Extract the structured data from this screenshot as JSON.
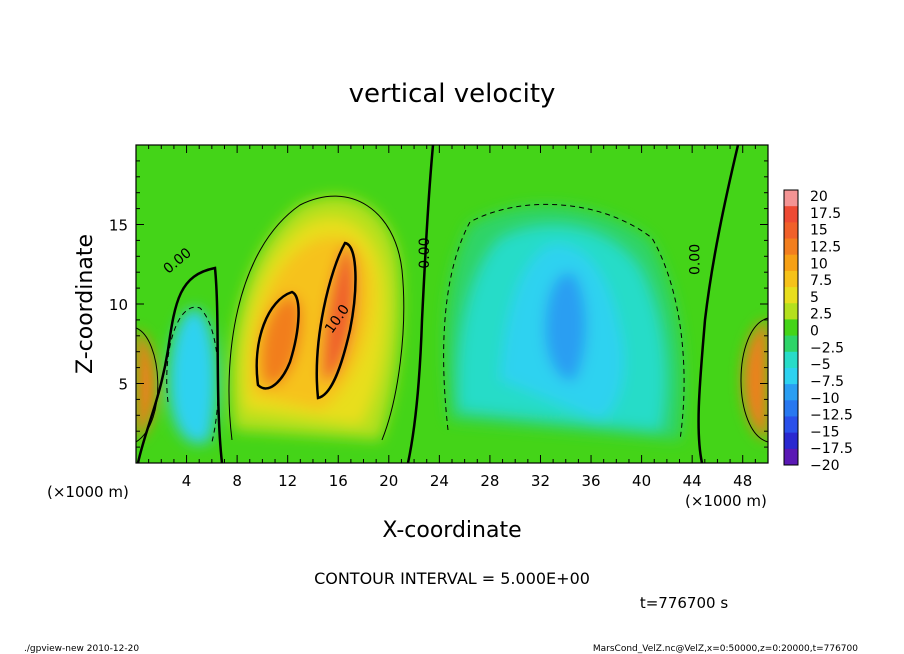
{
  "chart_data": {
    "type": "heatmap",
    "title": "vertical velocity",
    "xlabel": "X-coordinate",
    "ylabel": "Z-coordinate",
    "x_unit_left": "(×1000 m)",
    "x_unit_right": "(×1000 m)",
    "xlim": [
      0,
      50
    ],
    "ylim": [
      0,
      20
    ],
    "x_ticks": [
      4,
      8,
      12,
      16,
      20,
      24,
      28,
      32,
      36,
      40,
      44,
      48
    ],
    "y_ticks": [
      5,
      10,
      15
    ],
    "colorbar": {
      "levels": [
        20,
        17.5,
        15,
        12.5,
        10,
        7.5,
        5,
        2.5,
        0,
        -2.5,
        -5,
        -7.5,
        -10,
        -12.5,
        -15,
        -17.5,
        -20
      ],
      "labels": [
        "20",
        "17.5",
        "15",
        "12.5",
        "10",
        "7.5",
        "5",
        "2.5",
        "0",
        "−2.5",
        "−5",
        "−7.5",
        "−10",
        "−12.5",
        "−15",
        "−17.5",
        "−20"
      ],
      "colors": [
        "#f49494",
        "#ee4a34",
        "#f0602a",
        "#f27e1e",
        "#f6a015",
        "#f6c21a",
        "#e8de1e",
        "#b4e01e",
        "#44d418",
        "#2ed468",
        "#28dcc8",
        "#2ed2f0",
        "#2a9ef2",
        "#2878f0",
        "#2a50ea",
        "#2a28d0",
        "#5a18b4"
      ]
    },
    "contour_labels": [
      {
        "text": "0.00",
        "x": 3.5,
        "y": 12.5
      },
      {
        "text": "0.00",
        "x": 23.2,
        "y": 13.2
      },
      {
        "text": "10.0",
        "x": 16.2,
        "y": 8.9
      },
      {
        "text": "0.00",
        "x": 44.6,
        "y": 12.8
      }
    ],
    "contour_interval": "CONTOUR INTERVAL = 5.000E+00",
    "time": "t=776700  s",
    "footer_left": "./gpview-new  2010-12-20",
    "footer_right": "MarsCond_VelZ.nc@VelZ,x=0:50000,z=0:20000,t=776700"
  }
}
